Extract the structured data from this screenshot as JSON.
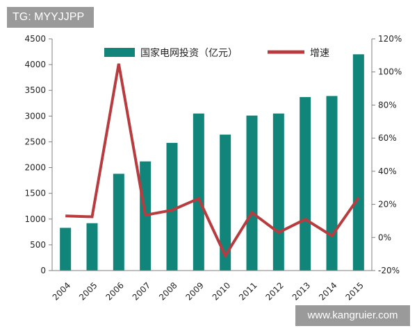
{
  "watermarks": {
    "top_left": "TG: MYYJJPP",
    "bottom_right": "www.kangruier.com"
  },
  "chart_data": {
    "type": "bar",
    "categories": [
      "2004",
      "2005",
      "2006",
      "2007",
      "2008",
      "2009",
      "2010",
      "2011",
      "2012",
      "2013",
      "2014",
      "2015"
    ],
    "series": [
      {
        "name": "国家电网投资（亿元）",
        "type": "bar",
        "axis": "left",
        "color": "#12857a",
        "values": [
          830,
          920,
          1880,
          2120,
          2480,
          3050,
          2640,
          3010,
          3050,
          3370,
          3390,
          4200
        ]
      },
      {
        "name": "增速",
        "type": "line",
        "axis": "right",
        "color": "#b83c3f",
        "values": [
          13,
          12.5,
          105,
          13.5,
          16.5,
          23.5,
          -11,
          15,
          3,
          11,
          1,
          24
        ]
      }
    ],
    "y_left": {
      "min": 0,
      "max": 4500,
      "step": 500,
      "ticks": [
        "0",
        "500",
        "1000",
        "1500",
        "2000",
        "2500",
        "3000",
        "3500",
        "4000",
        "4500"
      ]
    },
    "y_right": {
      "min": -20,
      "max": 120,
      "step": 20,
      "ticks": [
        "-20%",
        "0%",
        "20%",
        "40%",
        "60%",
        "80%",
        "100%",
        "120%"
      ]
    },
    "legend": {
      "position": "top-center"
    },
    "grid": false
  }
}
